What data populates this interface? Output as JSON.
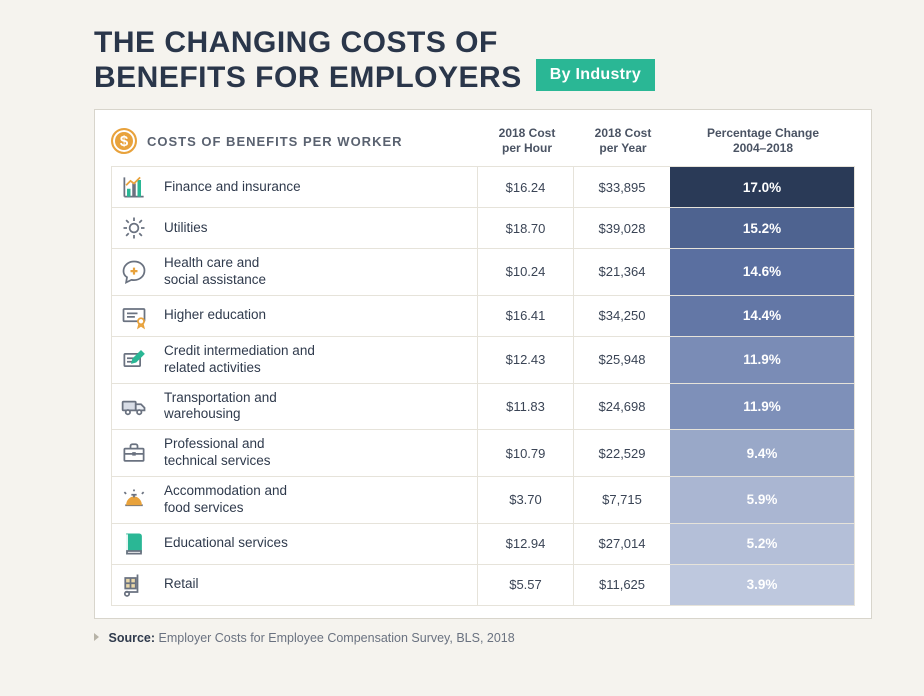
{
  "title_line1": "THE CHANGING COSTS OF",
  "title_line2": "BENEFITS FOR EMPLOYERS",
  "badge_text": "By Industry",
  "badge_bg": "#2ab795",
  "header": {
    "label": "COSTS OF BENEFITS PER WORKER",
    "col_hour_l1": "2018 Cost",
    "col_hour_l2": "per Hour",
    "col_year_l1": "2018 Cost",
    "col_year_l2": "per Year",
    "col_pct_l1": "Percentage Change",
    "col_pct_l2": "2004–2018"
  },
  "pct_colors": [
    "#2a3a57",
    "#4e6390",
    "#5a6fa0",
    "#6377a6",
    "#7a8cb6",
    "#7e90b9",
    "#99a8c8",
    "#aab6d2",
    "#b4bfd8",
    "#bec8de"
  ],
  "rows": [
    {
      "name": "Finance and insurance",
      "hour": "$16.24",
      "year": "$33,895",
      "pct": "17.0%"
    },
    {
      "name": "Utilities",
      "hour": "$18.70",
      "year": "$39,028",
      "pct": "15.2%"
    },
    {
      "name": "Health care and\nsocial assistance",
      "hour": "$10.24",
      "year": "$21,364",
      "pct": "14.6%"
    },
    {
      "name": "Higher education",
      "hour": "$16.41",
      "year": "$34,250",
      "pct": "14.4%"
    },
    {
      "name": "Credit intermediation and\nrelated activities",
      "hour": "$12.43",
      "year": "$25,948",
      "pct": "11.9%"
    },
    {
      "name": "Transportation and\nwarehousing",
      "hour": "$11.83",
      "year": "$24,698",
      "pct": "11.9%"
    },
    {
      "name": "Professional and\ntechnical services",
      "hour": "$10.79",
      "year": "$22,529",
      "pct": "9.4%"
    },
    {
      "name": "Accommodation and\nfood services",
      "hour": "$3.70",
      "year": "$7,715",
      "pct": "5.9%"
    },
    {
      "name": "Educational services",
      "hour": "$12.94",
      "year": "$27,014",
      "pct": "5.2%"
    },
    {
      "name": "Retail",
      "hour": "$5.57",
      "year": "$11,625",
      "pct": "3.9%"
    }
  ],
  "source_label": "Source:",
  "source_text": "Employer Costs for Employee Compensation Survey, BLS, 2018",
  "icon_stroke": "#6a7280",
  "icon_accent": "#2ab795",
  "icon_accent2": "#e8a23c"
}
